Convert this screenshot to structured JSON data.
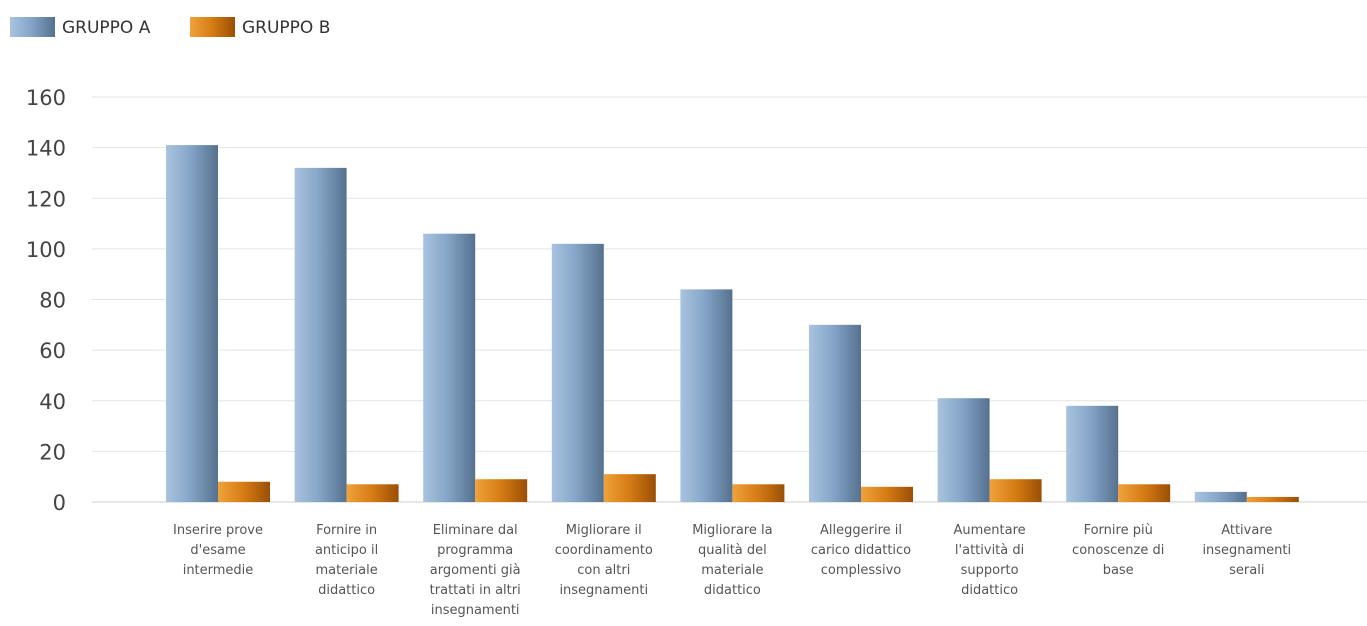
{
  "chart_data": {
    "type": "bar",
    "title": "",
    "xlabel": "",
    "ylabel": "",
    "ylim": [
      0,
      160
    ],
    "yticks": [
      0,
      20,
      40,
      60,
      80,
      100,
      120,
      140,
      160
    ],
    "grid": true,
    "legend_position": "top-left",
    "categories": [
      [
        "Inserire prove",
        "d'esame",
        "intermedie"
      ],
      [
        "Fornire in",
        "anticipo il",
        "materiale",
        "didattico"
      ],
      [
        "Eliminare dal",
        "programma",
        "argomenti già",
        "trattati in altri",
        "insegnamenti"
      ],
      [
        "Migliorare il",
        "coordinamento",
        "con altri",
        "insegnamenti"
      ],
      [
        "Migliorare la",
        "qualità del",
        "materiale",
        "didattico"
      ],
      [
        "Alleggerire il",
        "carico didattico",
        "complessivo"
      ],
      [
        "Aumentare",
        "l'attività di",
        "supporto",
        "didattico"
      ],
      [
        "Fornire più",
        "conoscenze di",
        "base"
      ],
      [
        "Attivare",
        "insegnamenti",
        "serali"
      ]
    ],
    "series": [
      {
        "name": "GRUPPO A",
        "color": "#6f8fb4",
        "values": [
          141,
          132,
          106,
          102,
          84,
          70,
          41,
          38,
          4
        ]
      },
      {
        "name": "GRUPPO B",
        "color": "#c96a0a",
        "values": [
          8,
          7,
          9,
          11,
          7,
          6,
          9,
          7,
          2
        ]
      }
    ]
  }
}
